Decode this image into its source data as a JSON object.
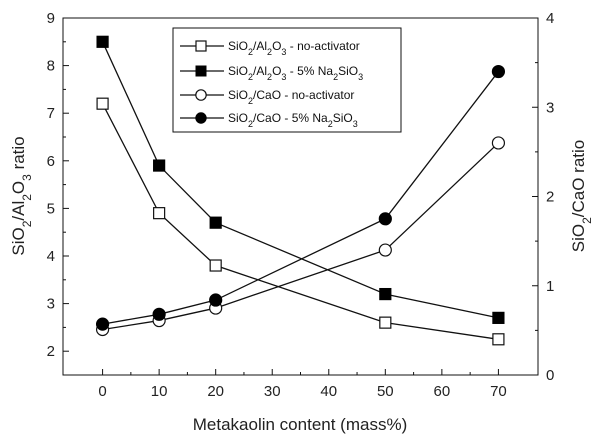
{
  "chart_data": {
    "type": "line",
    "title": "",
    "xlabel": "Metakaolin content (mass%)",
    "ylabel_left": {
      "base": "SiO",
      "sub1": "2",
      "mid": "/Al",
      "sub2": "2",
      "mid2": "O",
      "sub3": "3",
      "tail": " ratio"
    },
    "ylabel_right": {
      "base": "SiO",
      "sub1": "2",
      "tail": "/CaO ratio"
    },
    "x": [
      0,
      10,
      20,
      50,
      70
    ],
    "xlim": [
      -7,
      77
    ],
    "xticks": [
      "0",
      "10",
      "20",
      "30",
      "40",
      "50",
      "60",
      "70"
    ],
    "ylim_left": [
      1.5,
      9
    ],
    "yticks_left": [
      "2",
      "3",
      "4",
      "5",
      "6",
      "7",
      "8",
      "9"
    ],
    "ylim_right": [
      0,
      4
    ],
    "yticks_right": [
      "0",
      "1",
      "2",
      "3",
      "4"
    ],
    "legend_position": "top-center",
    "series": [
      {
        "name": "SiO2/Al2O3 - no-activator",
        "legend": {
          "a": "SiO",
          "a1": "2",
          "b": "/Al",
          "b1": "2",
          "c": "O",
          "c1": "3",
          "d": " - no-activator",
          "d1": ""
        },
        "axis": "left",
        "marker": "open-square",
        "values": [
          7.2,
          4.9,
          3.8,
          2.6,
          2.25
        ]
      },
      {
        "name": "SiO2/Al2O3 - 5% Na2SiO3",
        "legend": {
          "a": "SiO",
          "a1": "2",
          "b": "/Al",
          "b1": "2",
          "c": "O",
          "c1": "3",
          "d": " - 5% Na",
          "d1": "2",
          "e": "SiO",
          "e1": "3"
        },
        "axis": "left",
        "marker": "filled-square",
        "values": [
          8.5,
          5.9,
          4.7,
          3.2,
          2.7
        ]
      },
      {
        "name": "SiO2/CaO - no-activator",
        "legend": {
          "a": "SiO",
          "a1": "2",
          "b": "/CaO - no-activator"
        },
        "axis": "right",
        "marker": "open-circle",
        "values": [
          0.51,
          0.61,
          0.75,
          1.4,
          2.6
        ]
      },
      {
        "name": "SiO2/CaO - 5% Na2SiO3",
        "legend": {
          "a": "SiO",
          "a1": "2",
          "b": "/CaO - 5% Na",
          "b1": "2",
          "c": "SiO",
          "c1": "3"
        },
        "axis": "right",
        "marker": "filled-circle",
        "values": [
          0.57,
          0.68,
          0.84,
          1.75,
          3.4
        ]
      }
    ]
  }
}
